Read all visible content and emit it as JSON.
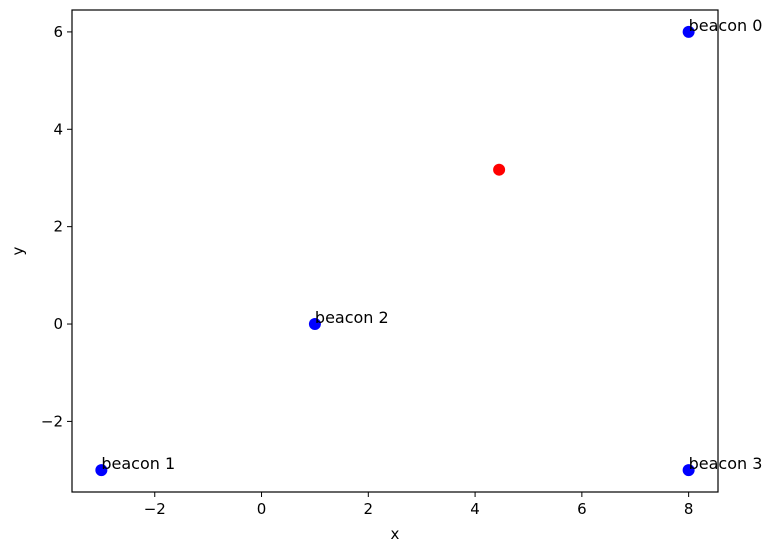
{
  "chart_data": {
    "type": "scatter",
    "xlabel": "x",
    "ylabel": "y",
    "xlim": [
      -3.55,
      8.55
    ],
    "ylim": [
      -3.45,
      6.45
    ],
    "xticks": [
      -2,
      0,
      2,
      4,
      6,
      8
    ],
    "yticks": [
      -2,
      0,
      2,
      4,
      6
    ],
    "xtick_labels": [
      "−2",
      "0",
      "2",
      "4",
      "6",
      "8"
    ],
    "ytick_labels": [
      "−2",
      "0",
      "2",
      "4",
      "6"
    ],
    "grid": false,
    "series": [
      {
        "color": "#0000ff",
        "points": [
          {
            "x": 8,
            "y": 6,
            "label": "beacon 0"
          },
          {
            "x": -3,
            "y": -3,
            "label": "beacon 1"
          },
          {
            "x": 1,
            "y": 0,
            "label": "beacon 2"
          },
          {
            "x": 8,
            "y": -3,
            "label": "beacon 3"
          }
        ]
      },
      {
        "color": "#ff0000",
        "points": [
          {
            "x": 4.45,
            "y": 3.17
          }
        ]
      }
    ]
  }
}
